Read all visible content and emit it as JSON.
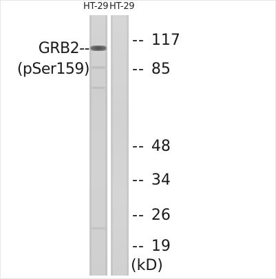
{
  "lanes": [
    "HT-29",
    "HT-29"
  ],
  "protein_label": {
    "name": "GRB2--",
    "modification": "(pSer159)"
  },
  "markers": [
    {
      "dash": "--",
      "value": "117"
    },
    {
      "dash": "--",
      "value": "85"
    },
    {
      "dash": "--",
      "value": "48"
    },
    {
      "dash": "--",
      "value": "34"
    },
    {
      "dash": "--",
      "value": "26"
    },
    {
      "dash": "--",
      "value": "19"
    }
  ],
  "unit": "(kD)"
}
